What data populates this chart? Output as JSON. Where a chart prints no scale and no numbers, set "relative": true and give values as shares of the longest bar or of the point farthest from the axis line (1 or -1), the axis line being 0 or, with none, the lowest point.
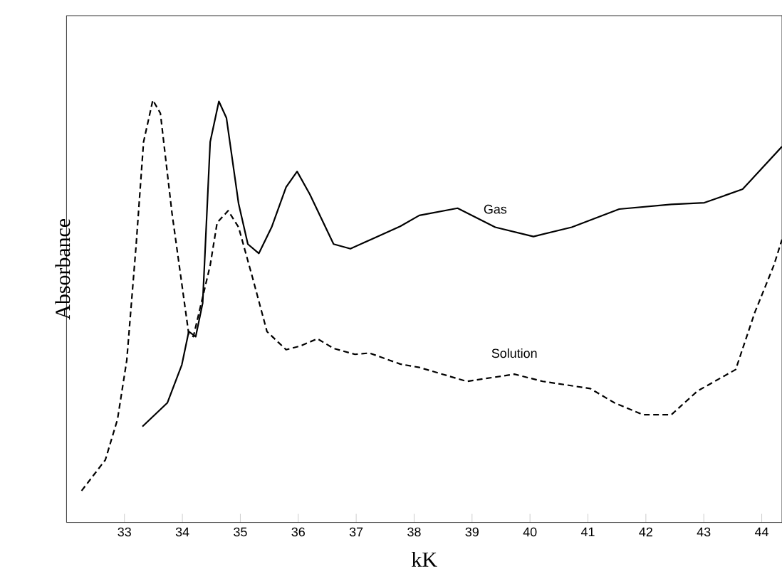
{
  "chart_data": {
    "type": "line",
    "xlabel": "kK",
    "ylabel": "Absorbance",
    "relative": true,
    "xlim": [
      32,
      44.35
    ],
    "xticks": [
      33,
      34,
      35,
      36,
      37,
      38,
      39,
      40,
      41,
      42,
      43,
      44
    ],
    "series": [
      {
        "name": "Gas",
        "color": "#000000",
        "line_style": "solid",
        "x": [
          33.31,
          33.74,
          33.99,
          34.11,
          34.23,
          34.35,
          34.48,
          34.63,
          34.76,
          34.97,
          35.13,
          35.32,
          35.54,
          35.79,
          35.98,
          36.2,
          36.61,
          36.9,
          37.27,
          37.76,
          38.09,
          38.75,
          39.4,
          40.06,
          40.72,
          41.54,
          42.44,
          43.01,
          43.67,
          44.35
        ],
        "values": [
          0.227,
          0.283,
          0.373,
          0.452,
          0.44,
          0.519,
          0.901,
          0.997,
          0.958,
          0.755,
          0.659,
          0.637,
          0.699,
          0.794,
          0.831,
          0.777,
          0.659,
          0.648,
          0.671,
          0.701,
          0.727,
          0.744,
          0.699,
          0.677,
          0.699,
          0.742,
          0.753,
          0.757,
          0.789,
          0.89
        ]
      },
      {
        "name": "Solution",
        "color": "#000000",
        "line_style": "dashed",
        "x": [
          32.26,
          32.67,
          32.88,
          33.04,
          33.2,
          33.33,
          33.49,
          33.62,
          33.82,
          34.11,
          34.19,
          34.48,
          34.6,
          34.79,
          34.97,
          35.22,
          35.46,
          35.79,
          36.04,
          36.33,
          36.61,
          36.98,
          37.23,
          37.76,
          38.09,
          38.91,
          39.73,
          40.22,
          41.04,
          41.46,
          41.95,
          42.44,
          42.89,
          43.55,
          43.88,
          44.21,
          44.35
        ],
        "values": [
          0.075,
          0.148,
          0.244,
          0.384,
          0.654,
          0.901,
          1.0,
          0.969,
          0.733,
          0.446,
          0.44,
          0.609,
          0.71,
          0.738,
          0.699,
          0.575,
          0.452,
          0.409,
          0.418,
          0.435,
          0.412,
          0.398,
          0.401,
          0.375,
          0.367,
          0.334,
          0.351,
          0.334,
          0.317,
          0.283,
          0.255,
          0.255,
          0.311,
          0.362,
          0.497,
          0.609,
          0.67
        ]
      }
    ]
  }
}
